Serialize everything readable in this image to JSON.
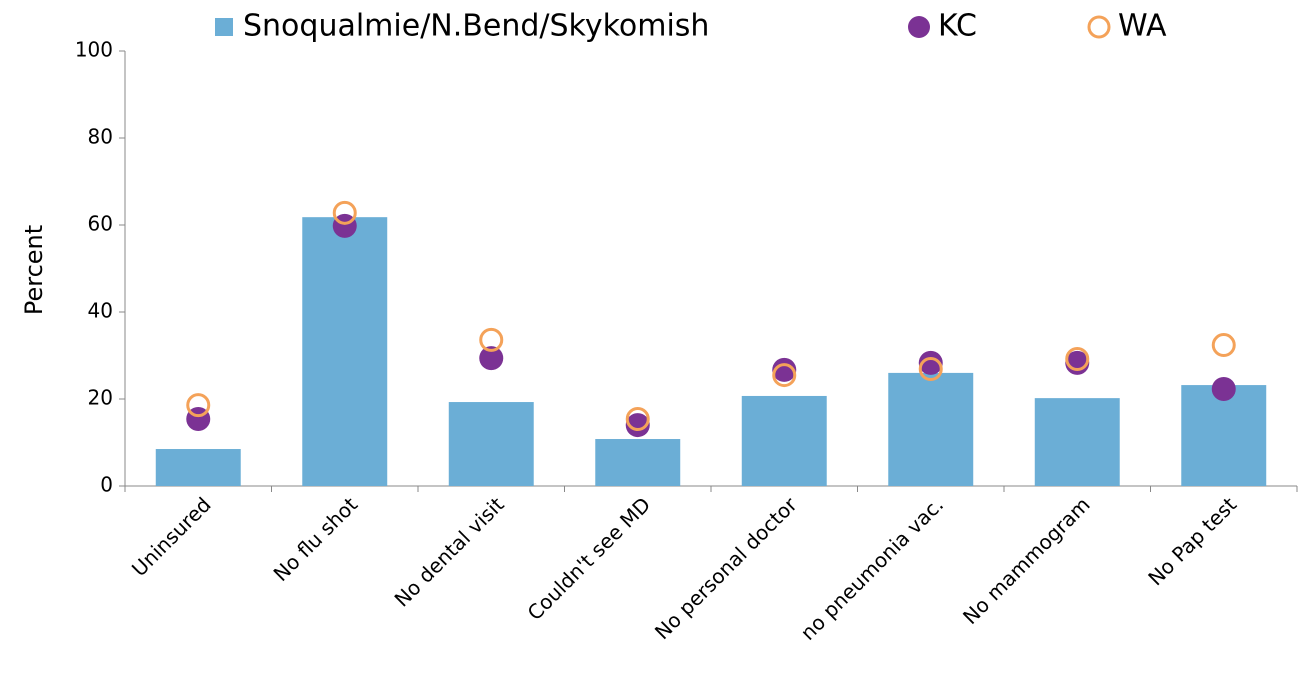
{
  "chart_data": {
    "type": "bar",
    "y_label": "Percent",
    "categories": [
      "Uninsured",
      "No flu shot",
      "No dental visit",
      "Couldn't see MD",
      "No personal doctor",
      "no pneumonia vac.",
      "No mammogram",
      "No Pap test"
    ],
    "series": [
      {
        "name": "Snoqualmie/N.Bend/Skykomish",
        "color": "#6baed6",
        "mark": "bar",
        "values": [
          8.5,
          61.8,
          19.3,
          10.8,
          20.7,
          26,
          20.2,
          23.2
        ]
      },
      {
        "name": "KC",
        "color": "#7b3294",
        "mark": "dot",
        "values": [
          15.4,
          59.8,
          29.4,
          14,
          26.7,
          28.3,
          28.3,
          22.3
        ]
      },
      {
        "name": "WA",
        "color": "#f4a259",
        "mark": "ring",
        "values": [
          18.6,
          62.8,
          33.6,
          15.4,
          25.5,
          26.9,
          29.2,
          32.4
        ]
      }
    ],
    "ylim": [
      0,
      100
    ],
    "yticks": [
      0,
      20,
      40,
      60,
      80,
      100
    ]
  }
}
